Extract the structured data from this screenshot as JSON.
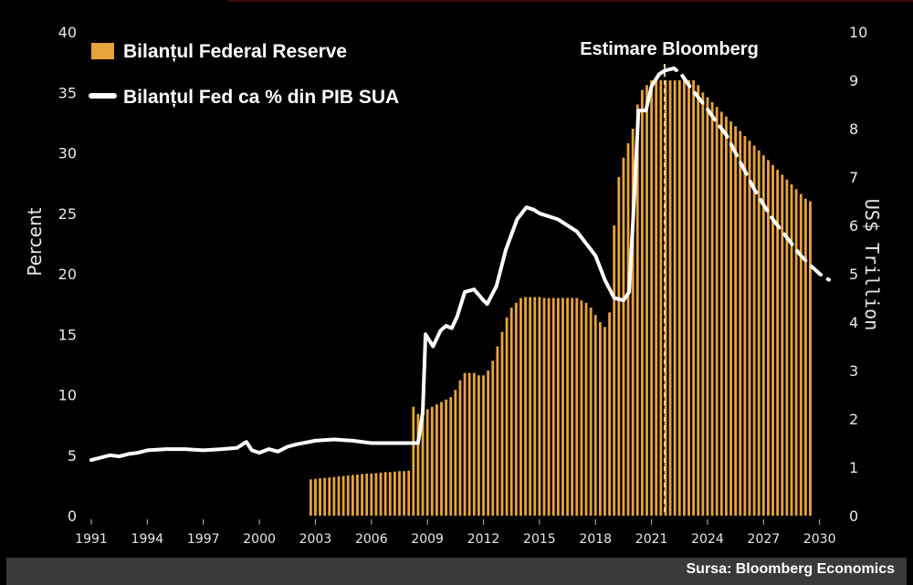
{
  "chart_data": {
    "type": "bar+line",
    "legend": {
      "bars_label": "Bilanțul Federal Reserve",
      "line_label": "Bilanțul Fed ca % din PIB SUA"
    },
    "annotation": "Estimare Bloomberg",
    "source": "Sursa: Bloomberg Economics",
    "y_left": {
      "label": "Percent",
      "range": [
        0,
        40
      ],
      "ticks": [
        "0",
        "5",
        "10",
        "15",
        "20",
        "25",
        "30",
        "35",
        "40"
      ]
    },
    "y_right": {
      "label": "US$ Trillion",
      "range": [
        0,
        10
      ],
      "ticks": [
        "0",
        "1",
        "2",
        "3",
        "4",
        "5",
        "6",
        "7",
        "8",
        "9",
        "10"
      ]
    },
    "x_axis": {
      "range": [
        1991,
        2030.7
      ],
      "ticks": [
        "1991",
        "1994",
        "1997",
        "2000",
        "2003",
        "2006",
        "2009",
        "2012",
        "2015",
        "2018",
        "2021",
        "2024",
        "2027",
        "2030"
      ]
    },
    "forecast_start": 2021.7,
    "colors": {
      "bars": "#e8a33a",
      "line": "#ffffff",
      "background": "#000000",
      "forecast_marker": "#f0d8a8"
    },
    "bars_trillion": {
      "start_year": 2002.75,
      "step_years": 0.25,
      "values": [
        0.75,
        0.76,
        0.77,
        0.78,
        0.79,
        0.8,
        0.81,
        0.82,
        0.83,
        0.84,
        0.85,
        0.86,
        0.87,
        0.87,
        0.88,
        0.89,
        0.9,
        0.9,
        0.91,
        0.92,
        0.92,
        0.93,
        2.25,
        2.1,
        2.1,
        2.2,
        2.25,
        2.3,
        2.35,
        2.4,
        2.45,
        2.6,
        2.8,
        2.95,
        2.95,
        2.95,
        2.9,
        2.9,
        3.0,
        3.2,
        3.5,
        3.8,
        4.1,
        4.3,
        4.4,
        4.5,
        4.52,
        4.52,
        4.52,
        4.52,
        4.5,
        4.5,
        4.5,
        4.5,
        4.5,
        4.5,
        4.5,
        4.5,
        4.45,
        4.4,
        4.3,
        4.15,
        4.0,
        3.9,
        4.2,
        6.0,
        7.0,
        7.4,
        7.7,
        8.0,
        8.5,
        8.8,
        8.9,
        9.0,
        9.0,
        9.0,
        9.0,
        9.0,
        9.0,
        9.0,
        9.0,
        9.0,
        9.0,
        8.9,
        8.75,
        8.65,
        8.55,
        8.45,
        8.35,
        8.25,
        8.15,
        8.05,
        7.95,
        7.85,
        7.75,
        7.65,
        7.55,
        7.45,
        7.35,
        7.25,
        7.15,
        7.05,
        6.95,
        6.85,
        6.75,
        6.65,
        6.55,
        6.5
      ]
    },
    "line_percent": {
      "actual": [
        [
          1991.0,
          4.6
        ],
        [
          1991.5,
          4.8
        ],
        [
          1992.0,
          5.0
        ],
        [
          1992.5,
          4.9
        ],
        [
          1993.0,
          5.1
        ],
        [
          1993.5,
          5.2
        ],
        [
          1994.0,
          5.4
        ],
        [
          1995.0,
          5.5
        ],
        [
          1996.0,
          5.5
        ],
        [
          1997.0,
          5.4
        ],
        [
          1998.0,
          5.5
        ],
        [
          1998.8,
          5.6
        ],
        [
          1999.3,
          6.1
        ],
        [
          1999.6,
          5.4
        ],
        [
          2000.0,
          5.2
        ],
        [
          2000.5,
          5.5
        ],
        [
          2001.0,
          5.3
        ],
        [
          2001.5,
          5.7
        ],
        [
          2002.0,
          5.9
        ],
        [
          2003.0,
          6.2
        ],
        [
          2004.0,
          6.3
        ],
        [
          2005.0,
          6.2
        ],
        [
          2006.0,
          6.0
        ],
        [
          2007.0,
          6.0
        ],
        [
          2008.0,
          6.0
        ],
        [
          2008.5,
          6.0
        ],
        [
          2008.75,
          8.5
        ],
        [
          2008.9,
          15.0
        ],
        [
          2009.3,
          14.0
        ],
        [
          2009.7,
          15.3
        ],
        [
          2010.0,
          15.7
        ],
        [
          2010.3,
          15.5
        ],
        [
          2010.6,
          16.5
        ],
        [
          2011.0,
          18.5
        ],
        [
          2011.5,
          18.7
        ],
        [
          2012.0,
          17.8
        ],
        [
          2012.2,
          17.5
        ],
        [
          2012.7,
          19.0
        ],
        [
          2013.2,
          22.0
        ],
        [
          2013.8,
          24.5
        ],
        [
          2014.3,
          25.5
        ],
        [
          2014.7,
          25.3
        ],
        [
          2015.0,
          25.0
        ],
        [
          2016.0,
          24.5
        ],
        [
          2017.0,
          23.5
        ],
        [
          2018.0,
          21.5
        ],
        [
          2018.5,
          19.5
        ],
        [
          2019.0,
          18.0
        ],
        [
          2019.5,
          17.8
        ],
        [
          2019.8,
          18.5
        ],
        [
          2020.1,
          27.0
        ],
        [
          2020.3,
          33.5
        ],
        [
          2020.7,
          33.5
        ],
        [
          2021.0,
          35.5
        ],
        [
          2021.4,
          36.5
        ],
        [
          2021.7,
          36.8
        ]
      ],
      "forecast": [
        [
          2021.7,
          36.8
        ],
        [
          2022.2,
          37.0
        ],
        [
          2022.6,
          36.5
        ],
        [
          2023.0,
          35.6
        ],
        [
          2023.5,
          34.6
        ],
        [
          2024.0,
          33.6
        ],
        [
          2024.5,
          32.5
        ],
        [
          2025.0,
          31.5
        ],
        [
          2025.5,
          30.0
        ],
        [
          2026.0,
          28.5
        ],
        [
          2026.5,
          27.0
        ],
        [
          2027.0,
          25.7
        ],
        [
          2027.5,
          24.5
        ],
        [
          2028.0,
          23.5
        ],
        [
          2028.5,
          22.5
        ],
        [
          2029.0,
          21.5
        ],
        [
          2029.5,
          20.7
        ],
        [
          2030.0,
          20.0
        ],
        [
          2030.5,
          19.5
        ]
      ]
    }
  }
}
